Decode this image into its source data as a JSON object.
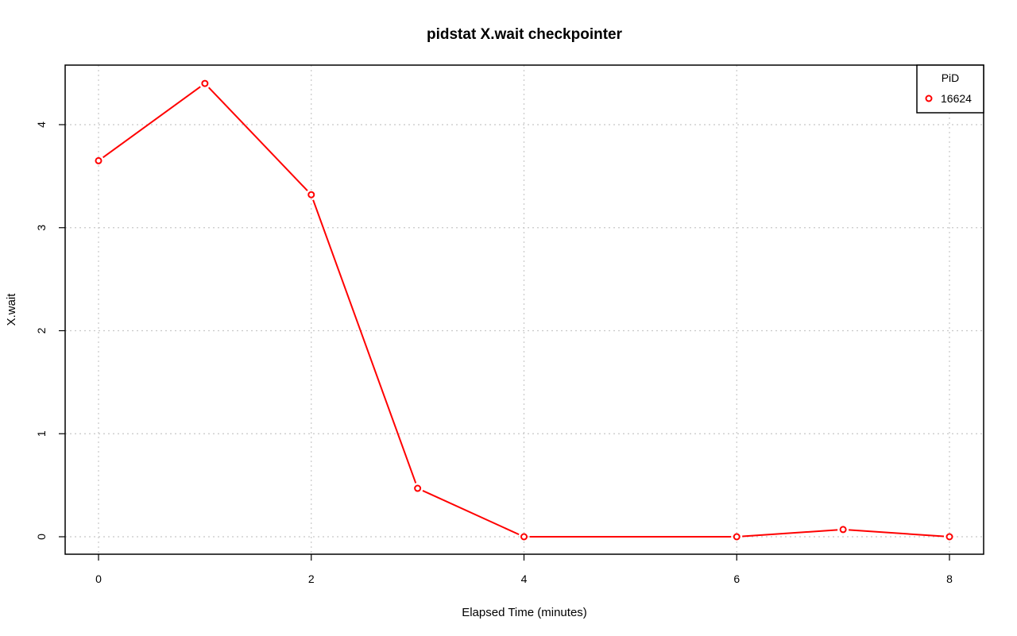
{
  "chart_data": {
    "type": "line",
    "title": "pidstat X.wait checkpointer",
    "xlabel": "Elapsed Time (minutes)",
    "ylabel": "X.wait",
    "xlim": [
      0,
      8
    ],
    "ylim": [
      0,
      4.4
    ],
    "x_ticks": [
      0,
      2,
      4,
      6,
      8
    ],
    "y_ticks": [
      0,
      1,
      2,
      3,
      4
    ],
    "grid": true,
    "legend": {
      "title": "PiD",
      "placement": "top-right"
    },
    "series": [
      {
        "name": "16624",
        "color": "#ff0000",
        "x": [
          0,
          1,
          2,
          3,
          4,
          6,
          7,
          8
        ],
        "y": [
          3.65,
          4.4,
          3.32,
          0.47,
          0.0,
          0.0,
          0.07,
          0.0
        ]
      }
    ]
  }
}
